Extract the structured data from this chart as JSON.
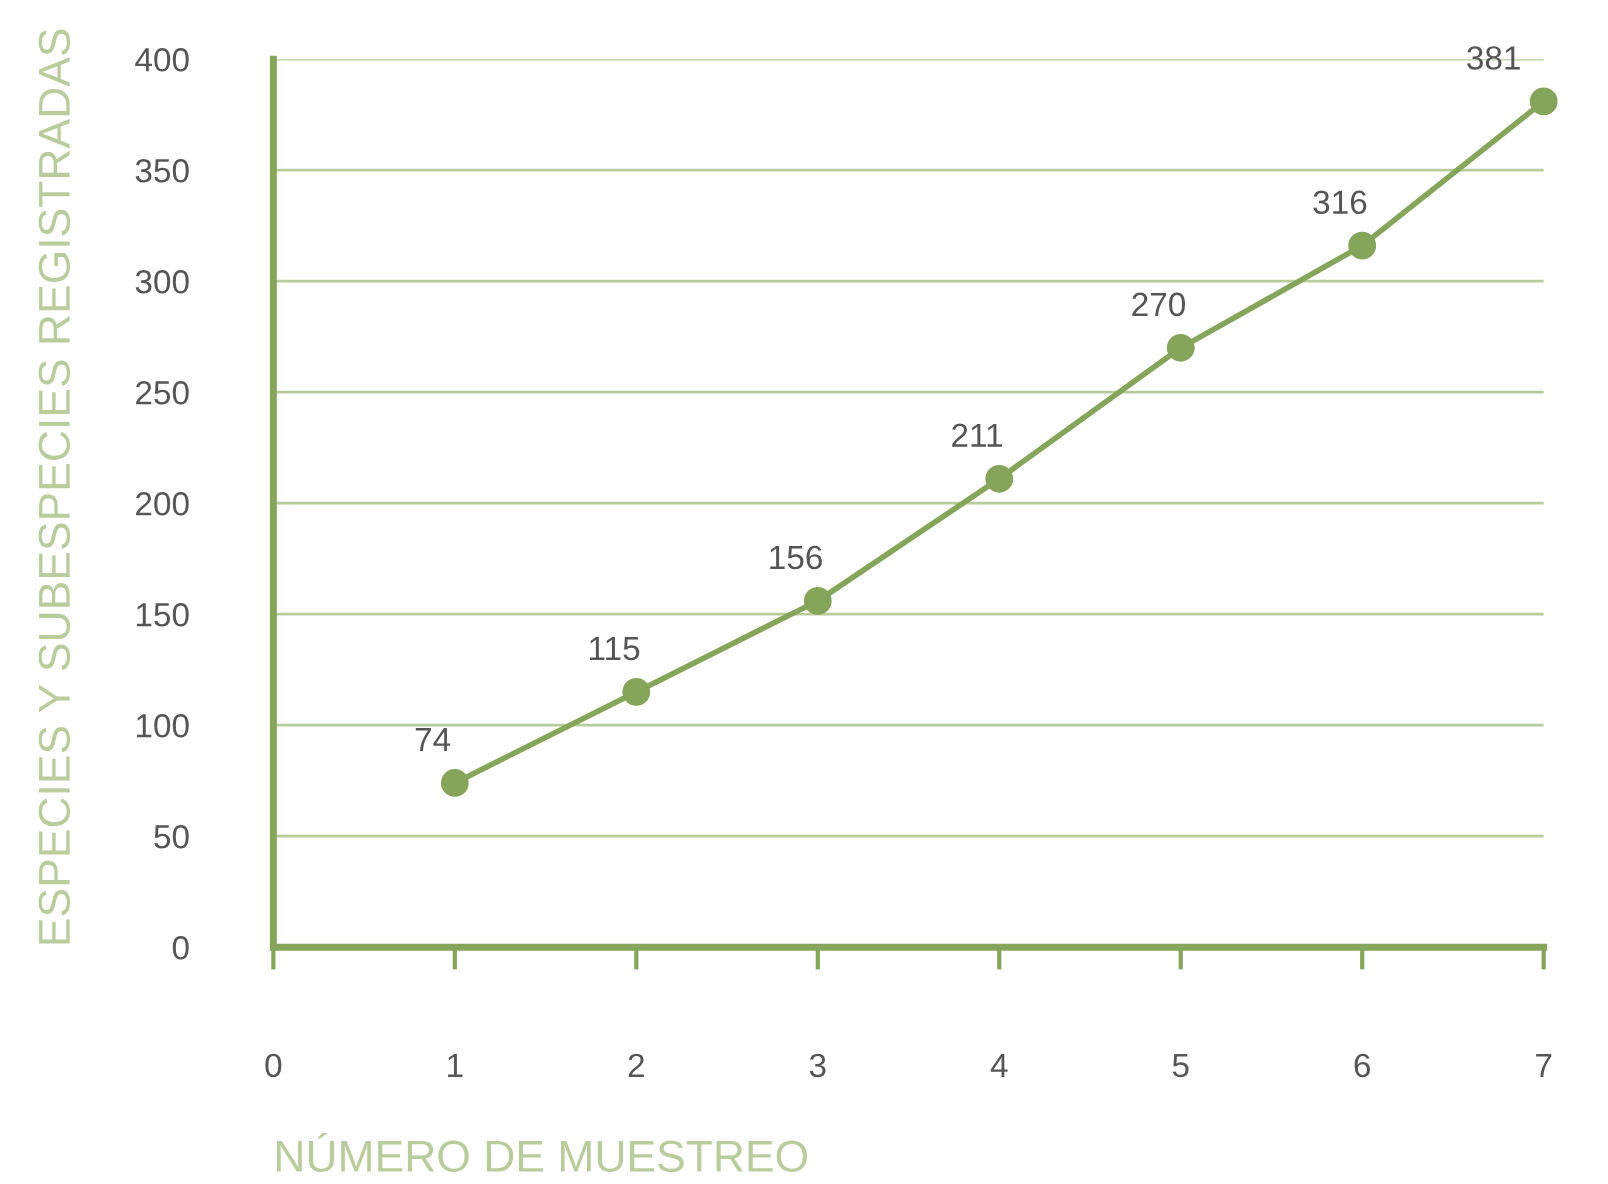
{
  "chart_data": {
    "type": "line",
    "xlabel": "NÚMERO DE MUESTREO",
    "ylabel": "ESPECIES Y SUBESPECIES REGISTRADAS",
    "x": [
      1,
      2,
      3,
      4,
      5,
      6,
      7
    ],
    "series": [
      {
        "color": "#84a55a",
        "values": [
          74,
          115,
          156,
          211,
          270,
          316,
          381
        ]
      }
    ],
    "xlim": [
      0,
      7
    ],
    "xticks": [
      0,
      1,
      2,
      3,
      4,
      5,
      6,
      7
    ],
    "ylim": [
      0,
      400
    ],
    "yticks": [
      0,
      50,
      100,
      150,
      200,
      250,
      300,
      350,
      400
    ],
    "grid": "y",
    "marker": "circle",
    "line_style": "solid",
    "data_labels": true,
    "legend": false
  }
}
